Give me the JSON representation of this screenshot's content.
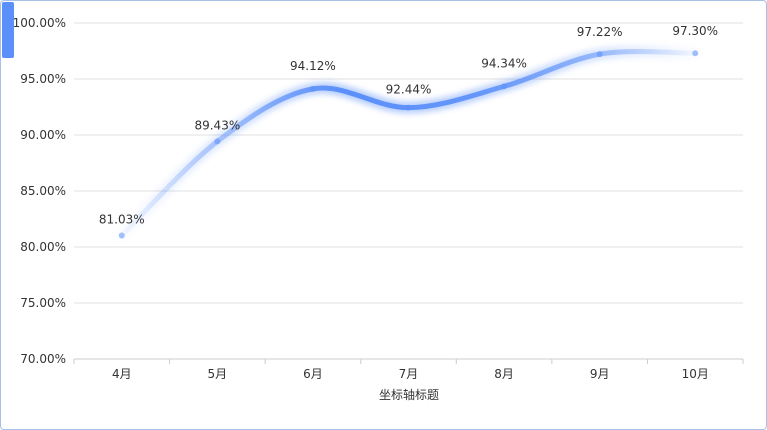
{
  "chart_data": {
    "type": "line",
    "smooth": true,
    "categories": [
      "4月",
      "5月",
      "6月",
      "7月",
      "8月",
      "9月",
      "10月"
    ],
    "series": [
      {
        "values": [
          81.03,
          89.43,
          94.12,
          92.44,
          94.34,
          97.22,
          97.3
        ],
        "color": "#5b8ff9"
      }
    ],
    "data_labels": [
      "81.03%",
      "89.43%",
      "94.12%",
      "92.44%",
      "94.34%",
      "97.22%",
      "97.30%"
    ],
    "y_ticks": [
      70,
      75,
      80,
      85,
      90,
      95,
      100
    ],
    "y_tick_labels": [
      "70.00%",
      "75.00%",
      "80.00%",
      "85.00%",
      "90.00%",
      "95.00%",
      "100.00%"
    ],
    "ylim": [
      70,
      100
    ],
    "xlabel": "坐标轴标题",
    "ylabel": "",
    "title": "",
    "grid": "horizontal",
    "legend": "none"
  },
  "colors": {
    "accent": "#5b8ff9",
    "grid": "#e0e0e0",
    "axis": "#cccccc",
    "text": "#333333",
    "frame": "#a9c1e6"
  }
}
